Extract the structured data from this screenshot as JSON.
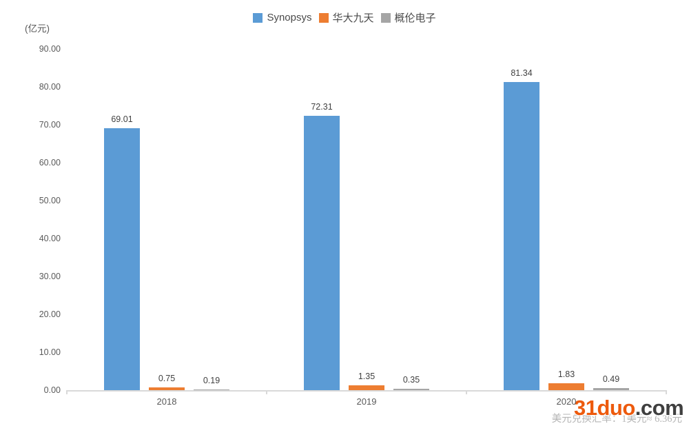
{
  "chart_data": {
    "type": "bar",
    "title": "",
    "categories": [
      "2018",
      "2019",
      "2020"
    ],
    "series": [
      {
        "name": "Synopsys",
        "color": "#5B9BD5",
        "values": [
          69.01,
          72.31,
          81.34
        ]
      },
      {
        "name": "华大九天",
        "color": "#ED7D31",
        "values": [
          0.75,
          1.35,
          1.83
        ]
      },
      {
        "name": "概伦电子",
        "color": "#A5A5A5",
        "values": [
          0.19,
          0.35,
          0.49
        ]
      }
    ],
    "xlabel": "",
    "ylabel": "(亿元)",
    "ylim": [
      0,
      90
    ],
    "ytick_step": 10,
    "yticks": [
      "0.00",
      "10.00",
      "20.00",
      "30.00",
      "40.00",
      "50.00",
      "60.00",
      "70.00",
      "80.00",
      "90.00"
    ],
    "grid": false,
    "legend_position": "top-center",
    "axis_color": "#D9D9D9",
    "tick_label_color": "#595959",
    "value_label_color": "#404040"
  },
  "footnote": {
    "text": "美元兑换汇率：1美元≈ 6.36元"
  },
  "watermark": {
    "brand": "31duo",
    "tld": ".com",
    "brand_color": "#ED5A0D",
    "tld_color": "#3F3F3F"
  }
}
